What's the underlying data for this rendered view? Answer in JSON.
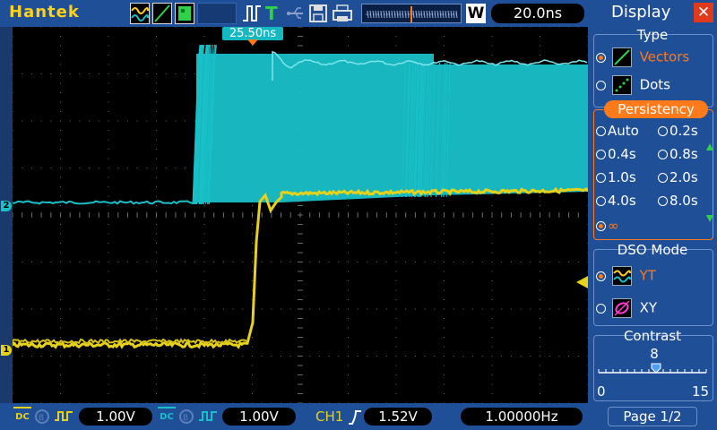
{
  "header": {
    "brand": "Hantek",
    "timebase": "20.0ns",
    "window_label": "W",
    "trigger_mode_label": "T"
  },
  "screen": {
    "trigger_time_label": "25.50ns",
    "ch1_marker": "1",
    "ch2_marker": "2"
  },
  "footer": {
    "ch1_coupling": "DC",
    "ch1_volts": "1.00V",
    "ch2_coupling": "DC",
    "ch2_volts": "1.00V",
    "trigger_source": "CH1",
    "trigger_level": "1.52V",
    "frequency": "1.00000Hz"
  },
  "panel": {
    "title": "Display",
    "type_title": "Type",
    "type_options": [
      "Vectors",
      "Dots"
    ],
    "type_selected": "Vectors",
    "persistency_title": "Persistency",
    "persistency_options": [
      "Auto",
      "0.2s",
      "0.4s",
      "0.8s",
      "1.0s",
      "2.0s",
      "4.0s",
      "8.0s",
      "∞"
    ],
    "persistency_selected": "∞",
    "dso_title": "DSO Mode",
    "dso_options": [
      "YT",
      "XY"
    ],
    "dso_selected": "YT",
    "contrast_title": "Contrast",
    "contrast_value": "8",
    "contrast_min": "0",
    "contrast_max": "15",
    "page_label": "Page 1/2"
  },
  "colors": {
    "ch1": "#e6d21a",
    "ch2": "#19c0c8",
    "accent": "#ff7a1a",
    "panel_bg": "#1f4f96"
  }
}
